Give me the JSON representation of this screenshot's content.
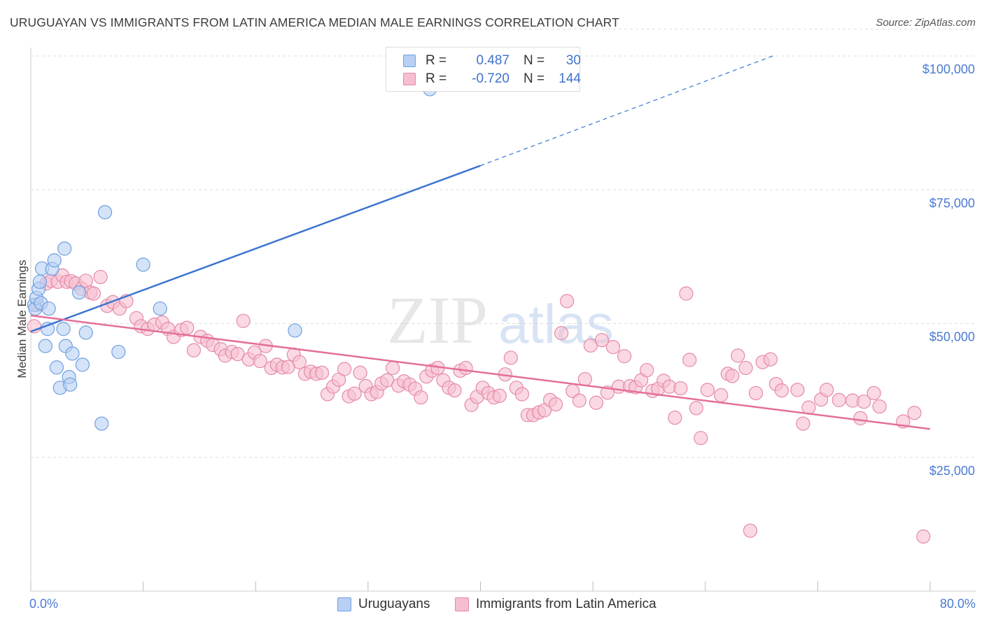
{
  "header": {
    "title": "URUGUAYAN VS IMMIGRANTS FROM LATIN AMERICA MEDIAN MALE EARNINGS CORRELATION CHART",
    "source": "Source: ZipAtlas.com"
  },
  "watermark": {
    "zip": "ZIP",
    "atlas": "atlas"
  },
  "legend": {
    "rows": [
      {
        "r_label": "R =",
        "r_value": "0.487",
        "n_label": "N =",
        "n_value": "30"
      },
      {
        "r_label": "R =",
        "r_value": "-0.720",
        "n_label": "N =",
        "n_value": "144"
      }
    ]
  },
  "bottom_legend": {
    "items": [
      {
        "label": "Uruguayans"
      },
      {
        "label": "Immigrants from Latin America"
      }
    ]
  },
  "colors": {
    "blue_fill": "#b7d0f4",
    "blue_stroke": "#6f9fe0",
    "blue_line": "#3a74d1",
    "pink_fill": "#f6bfd0",
    "pink_stroke": "#e58aa8",
    "pink_line": "#e46f99",
    "tick_text": "#4a7bd0",
    "grid": "#dddddd"
  },
  "chart_data": {
    "type": "scatter",
    "title": "URUGUAYAN VS IMMIGRANTS FROM LATIN AMERICA MEDIAN MALE EARNINGS CORRELATION CHART",
    "xlabel": "",
    "ylabel": "Median Male Earnings",
    "xlim": [
      0,
      80
    ],
    "ylim": [
      0,
      105000
    ],
    "x_tick_labels": [
      "0.0%",
      "80.0%"
    ],
    "y_ticks": [
      {
        "value": 25000,
        "label": "$25,000"
      },
      {
        "value": 50000,
        "label": "$50,000"
      },
      {
        "value": 75000,
        "label": "$75,000"
      },
      {
        "value": 100000,
        "label": "$100,000"
      }
    ],
    "grid": "horizontal dashed",
    "legend_position": "top-center",
    "series": [
      {
        "name": "Uruguayans",
        "color": "blue",
        "trend": {
          "x1": 0,
          "y1": 48500,
          "x2": 40,
          "y2": 79500,
          "dashed_to": {
            "x": 66,
            "y": 100000
          }
        },
        "points": [
          [
            0.3,
            53500
          ],
          [
            0.4,
            52800
          ],
          [
            0.5,
            54800
          ],
          [
            0.7,
            56500
          ],
          [
            0.8,
            57800
          ],
          [
            0.9,
            53800
          ],
          [
            1.0,
            60300
          ],
          [
            1.3,
            45800
          ],
          [
            1.5,
            49000
          ],
          [
            1.6,
            52800
          ],
          [
            1.9,
            60200
          ],
          [
            2.1,
            61800
          ],
          [
            2.3,
            41800
          ],
          [
            2.6,
            38000
          ],
          [
            2.9,
            49000
          ],
          [
            3.0,
            64000
          ],
          [
            3.1,
            45800
          ],
          [
            3.4,
            40000
          ],
          [
            3.5,
            38600
          ],
          [
            3.7,
            44400
          ],
          [
            4.3,
            55800
          ],
          [
            4.6,
            42300
          ],
          [
            4.9,
            48300
          ],
          [
            6.3,
            31300
          ],
          [
            6.6,
            70800
          ],
          [
            7.8,
            44700
          ],
          [
            10.0,
            61000
          ],
          [
            11.5,
            52800
          ],
          [
            23.5,
            48700
          ],
          [
            35.5,
            93800
          ]
        ]
      },
      {
        "name": "Immigrants from Latin America",
        "color": "pink",
        "trend": {
          "x1": 0,
          "y1": 51500,
          "x2": 80,
          "y2": 30300
        },
        "points": [
          [
            0.3,
            49500
          ],
          [
            0.6,
            53500
          ],
          [
            1.4,
            57500
          ],
          [
            1.8,
            58000
          ],
          [
            2.4,
            57800
          ],
          [
            2.8,
            59000
          ],
          [
            3.2,
            57800
          ],
          [
            3.6,
            57900
          ],
          [
            4.0,
            57500
          ],
          [
            4.5,
            56500
          ],
          [
            4.9,
            58000
          ],
          [
            5.3,
            55800
          ],
          [
            5.6,
            55600
          ],
          [
            6.2,
            58700
          ],
          [
            6.8,
            53300
          ],
          [
            7.3,
            54000
          ],
          [
            7.9,
            52800
          ],
          [
            8.5,
            54200
          ],
          [
            9.4,
            51000
          ],
          [
            9.8,
            49500
          ],
          [
            10.4,
            49000
          ],
          [
            11.0,
            49800
          ],
          [
            11.7,
            50200
          ],
          [
            12.2,
            49000
          ],
          [
            12.7,
            47500
          ],
          [
            13.4,
            48800
          ],
          [
            13.9,
            49200
          ],
          [
            14.5,
            45000
          ],
          [
            15.1,
            47500
          ],
          [
            15.7,
            46800
          ],
          [
            16.2,
            46000
          ],
          [
            16.9,
            45200
          ],
          [
            17.3,
            44000
          ],
          [
            17.9,
            44700
          ],
          [
            18.4,
            44300
          ],
          [
            18.9,
            50500
          ],
          [
            19.4,
            43300
          ],
          [
            19.9,
            44600
          ],
          [
            20.4,
            43000
          ],
          [
            20.9,
            45800
          ],
          [
            21.4,
            41700
          ],
          [
            21.9,
            42300
          ],
          [
            22.4,
            41800
          ],
          [
            22.9,
            41900
          ],
          [
            23.4,
            44200
          ],
          [
            23.9,
            42800
          ],
          [
            24.4,
            40600
          ],
          [
            24.9,
            41000
          ],
          [
            25.4,
            40600
          ],
          [
            25.9,
            40800
          ],
          [
            26.4,
            36800
          ],
          [
            26.9,
            38200
          ],
          [
            27.4,
            39500
          ],
          [
            27.9,
            41500
          ],
          [
            28.3,
            36400
          ],
          [
            28.8,
            36900
          ],
          [
            29.3,
            40800
          ],
          [
            29.8,
            38300
          ],
          [
            30.3,
            36800
          ],
          [
            30.8,
            37200
          ],
          [
            31.2,
            38800
          ],
          [
            31.7,
            39400
          ],
          [
            32.2,
            41700
          ],
          [
            32.7,
            38400
          ],
          [
            33.2,
            39200
          ],
          [
            33.7,
            38600
          ],
          [
            34.2,
            37800
          ],
          [
            34.7,
            36200
          ],
          [
            35.2,
            40100
          ],
          [
            35.7,
            41200
          ],
          [
            36.2,
            41700
          ],
          [
            36.7,
            39400
          ],
          [
            37.2,
            38000
          ],
          [
            37.7,
            37500
          ],
          [
            38.2,
            41200
          ],
          [
            38.7,
            41700
          ],
          [
            39.2,
            34800
          ],
          [
            39.7,
            36300
          ],
          [
            40.2,
            38000
          ],
          [
            40.7,
            37000
          ],
          [
            41.2,
            36200
          ],
          [
            41.7,
            36500
          ],
          [
            42.2,
            40500
          ],
          [
            42.7,
            43600
          ],
          [
            43.2,
            38000
          ],
          [
            43.7,
            36800
          ],
          [
            44.2,
            32900
          ],
          [
            44.7,
            32900
          ],
          [
            45.2,
            33400
          ],
          [
            45.7,
            33800
          ],
          [
            46.2,
            35700
          ],
          [
            46.7,
            34900
          ],
          [
            47.2,
            48200
          ],
          [
            47.7,
            54200
          ],
          [
            48.2,
            37400
          ],
          [
            48.8,
            35600
          ],
          [
            49.3,
            39600
          ],
          [
            49.8,
            45900
          ],
          [
            50.3,
            35200
          ],
          [
            50.8,
            46900
          ],
          [
            51.3,
            37100
          ],
          [
            51.8,
            45600
          ],
          [
            52.3,
            38200
          ],
          [
            52.8,
            43900
          ],
          [
            53.3,
            38300
          ],
          [
            53.8,
            38100
          ],
          [
            54.3,
            39400
          ],
          [
            54.8,
            41300
          ],
          [
            55.3,
            37400
          ],
          [
            55.8,
            37800
          ],
          [
            56.3,
            39300
          ],
          [
            56.8,
            38200
          ],
          [
            57.3,
            32400
          ],
          [
            57.8,
            37900
          ],
          [
            58.3,
            55600
          ],
          [
            58.6,
            43200
          ],
          [
            59.2,
            34200
          ],
          [
            59.6,
            28600
          ],
          [
            60.2,
            37600
          ],
          [
            61.4,
            36600
          ],
          [
            62.0,
            40600
          ],
          [
            62.4,
            40200
          ],
          [
            62.9,
            44000
          ],
          [
            63.6,
            41700
          ],
          [
            64.0,
            11300
          ],
          [
            64.5,
            37000
          ],
          [
            65.1,
            42800
          ],
          [
            65.8,
            43300
          ],
          [
            66.3,
            38700
          ],
          [
            66.8,
            37500
          ],
          [
            68.2,
            37600
          ],
          [
            68.7,
            31300
          ],
          [
            69.2,
            34300
          ],
          [
            70.3,
            35800
          ],
          [
            70.8,
            37600
          ],
          [
            71.9,
            35700
          ],
          [
            73.1,
            35600
          ],
          [
            73.8,
            32300
          ],
          [
            74.1,
            35400
          ],
          [
            75.0,
            37000
          ],
          [
            75.5,
            34500
          ],
          [
            77.6,
            31700
          ],
          [
            78.6,
            33300
          ],
          [
            79.4,
            10200
          ]
        ]
      }
    ]
  }
}
